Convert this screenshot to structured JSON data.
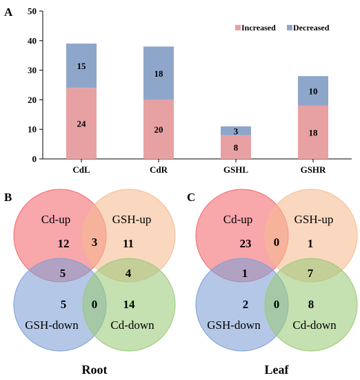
{
  "panel_labels": {
    "a": "A",
    "b": "B",
    "c": "C"
  },
  "colors": {
    "increased": "#e8a1a3",
    "decreased": "#8fa6cb",
    "cd_up": "#f3676f",
    "gsh_up": "#f6ba90",
    "gsh_down": "#7e9fd4",
    "cd_down": "#9bca78"
  },
  "chart_data": [
    {
      "type": "bar",
      "stacked": true,
      "categories": [
        "CdL",
        "CdR",
        "GSHL",
        "GSHR"
      ],
      "series": [
        {
          "name": "Increased",
          "values": [
            24,
            20,
            8,
            18
          ]
        },
        {
          "name": "Decreased",
          "values": [
            15,
            18,
            3,
            10
          ]
        }
      ],
      "ylim": [
        0,
        50
      ],
      "yticks": [
        0,
        10,
        20,
        30,
        40,
        50
      ],
      "legend_position": "top-right",
      "grid": false
    }
  ],
  "venn_root": {
    "title": "Root",
    "sets": [
      "Cd-up",
      "GSH-up",
      "GSH-down",
      "Cd-down"
    ],
    "counts": {
      "cd_up_only": "12",
      "cd_up_gsh_up": "3",
      "gsh_up_only": "11",
      "cd_up_gsh_down": "5",
      "gsh_up_cd_down": "4",
      "gsh_down_only": "5",
      "gsh_down_cd_down": "0",
      "cd_down_only": "14"
    }
  },
  "venn_leaf": {
    "title": "Leaf",
    "sets": [
      "Cd-up",
      "GSH-up",
      "GSH-down",
      "Cd-down"
    ],
    "counts": {
      "cd_up_only": "23",
      "cd_up_gsh_up": "0",
      "gsh_up_only": "1",
      "cd_up_gsh_down": "1",
      "gsh_up_cd_down": "7",
      "gsh_down_only": "2",
      "gsh_down_cd_down": "0",
      "cd_down_only": "8"
    }
  }
}
